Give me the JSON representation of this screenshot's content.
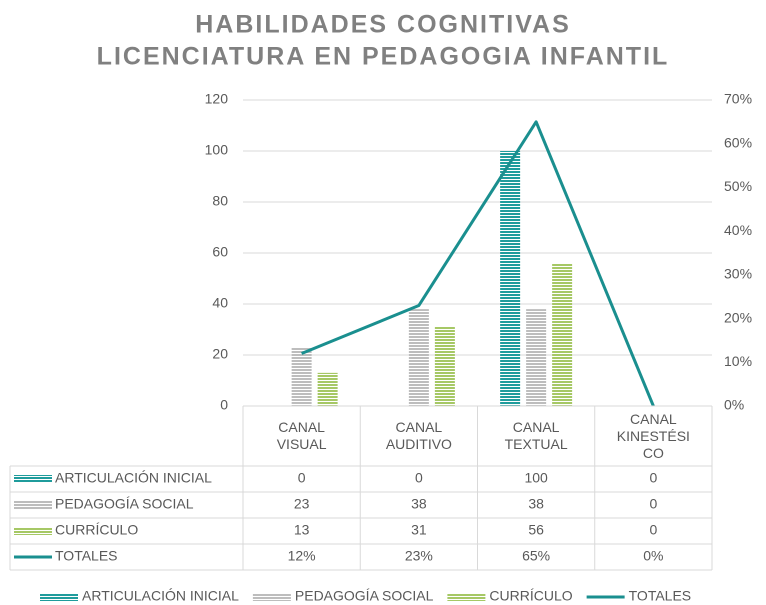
{
  "chart_data": {
    "type": "bar",
    "title": "HABILIDADES COGNITIVAS",
    "subtitle": "LICENCIATURA EN PEDAGOGIA INFANTIL",
    "categories": [
      "CANAL VISUAL",
      "CANAL AUDITIVO",
      "CANAL TEXTUAL",
      "CANAL KINESTÉSICO"
    ],
    "series": [
      {
        "name": "ARTICULACIÓN INICIAL",
        "color": "#1f9c9c",
        "values": [
          0,
          0,
          100,
          0
        ]
      },
      {
        "name": "PEDAGOGÍA SOCIAL",
        "color": "#bdbdbd",
        "values": [
          23,
          38,
          38,
          0
        ]
      },
      {
        "name": "CURRÍCULO",
        "color": "#a6c865",
        "values": [
          13,
          31,
          56,
          0
        ]
      },
      {
        "name": "TOTALES",
        "color": "#1a8f8f",
        "type": "line",
        "axis": "y2",
        "values": [
          12,
          23,
          65,
          0
        ],
        "value_labels": [
          "12%",
          "23%",
          "65%",
          "0%"
        ]
      }
    ],
    "ylim": [
      0,
      120
    ],
    "yticks": [
      0,
      20,
      40,
      60,
      80,
      100,
      120
    ],
    "y2lim": [
      0,
      70
    ],
    "y2ticks": [
      {
        "value": 0,
        "label": "0%"
      },
      {
        "value": 10,
        "label": "10%"
      },
      {
        "value": 20,
        "label": "20%"
      },
      {
        "value": 30,
        "label": "30%"
      },
      {
        "value": 40,
        "label": "40%"
      },
      {
        "value": 50,
        "label": "50%"
      },
      {
        "value": 60,
        "label": "60%"
      },
      {
        "value": 70,
        "label": "70%"
      }
    ],
    "grid": true,
    "legend": "bottom"
  }
}
